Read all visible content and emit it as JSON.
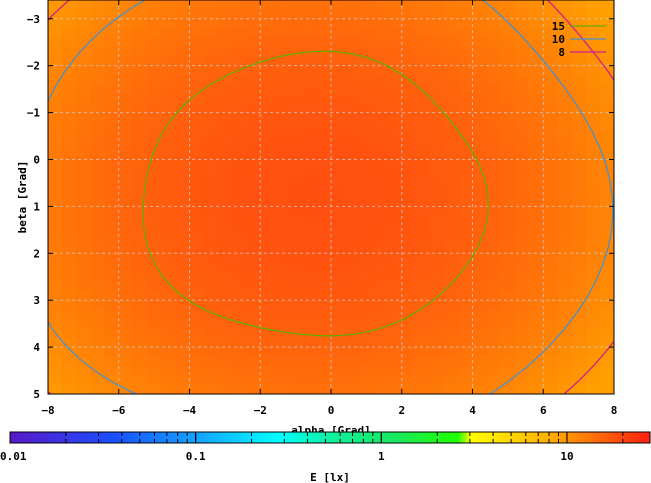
{
  "chart_data": {
    "type": "heatmap",
    "title": "",
    "xlabel": "alpha [Grad]",
    "ylabel": "beta [Grad]",
    "xlim": [
      -8,
      8
    ],
    "ylim": [
      -3.4,
      5
    ],
    "y_axis_inverted": true,
    "xticks": [
      -8,
      -6,
      -4,
      -2,
      0,
      2,
      4,
      6,
      8
    ],
    "yticks": [
      -3,
      -2,
      -1,
      0,
      1,
      2,
      3,
      4,
      5
    ],
    "grid": true,
    "colorbar": {
      "label": "E [lx]",
      "scale": "log",
      "range": [
        0.01,
        28
      ],
      "tick_labels": [
        "0.01",
        "0.1",
        "1",
        "10"
      ],
      "tick_values": [
        0.01,
        0.1,
        1,
        10
      ]
    },
    "contours": [
      {
        "name": "15",
        "level": 15,
        "color": "#66aa00"
      },
      {
        "name": "10",
        "level": 10,
        "color": "#4a90c8"
      },
      {
        "name": "8",
        "level": 8,
        "color": "#d0208a"
      }
    ],
    "surface": {
      "peak_value": 18.5,
      "peak_at": [
        -0.5,
        0.8
      ],
      "edge_value_corner": 7.5,
      "colors": {
        "low": "#ffa000",
        "high": "#ff5010"
      }
    }
  }
}
